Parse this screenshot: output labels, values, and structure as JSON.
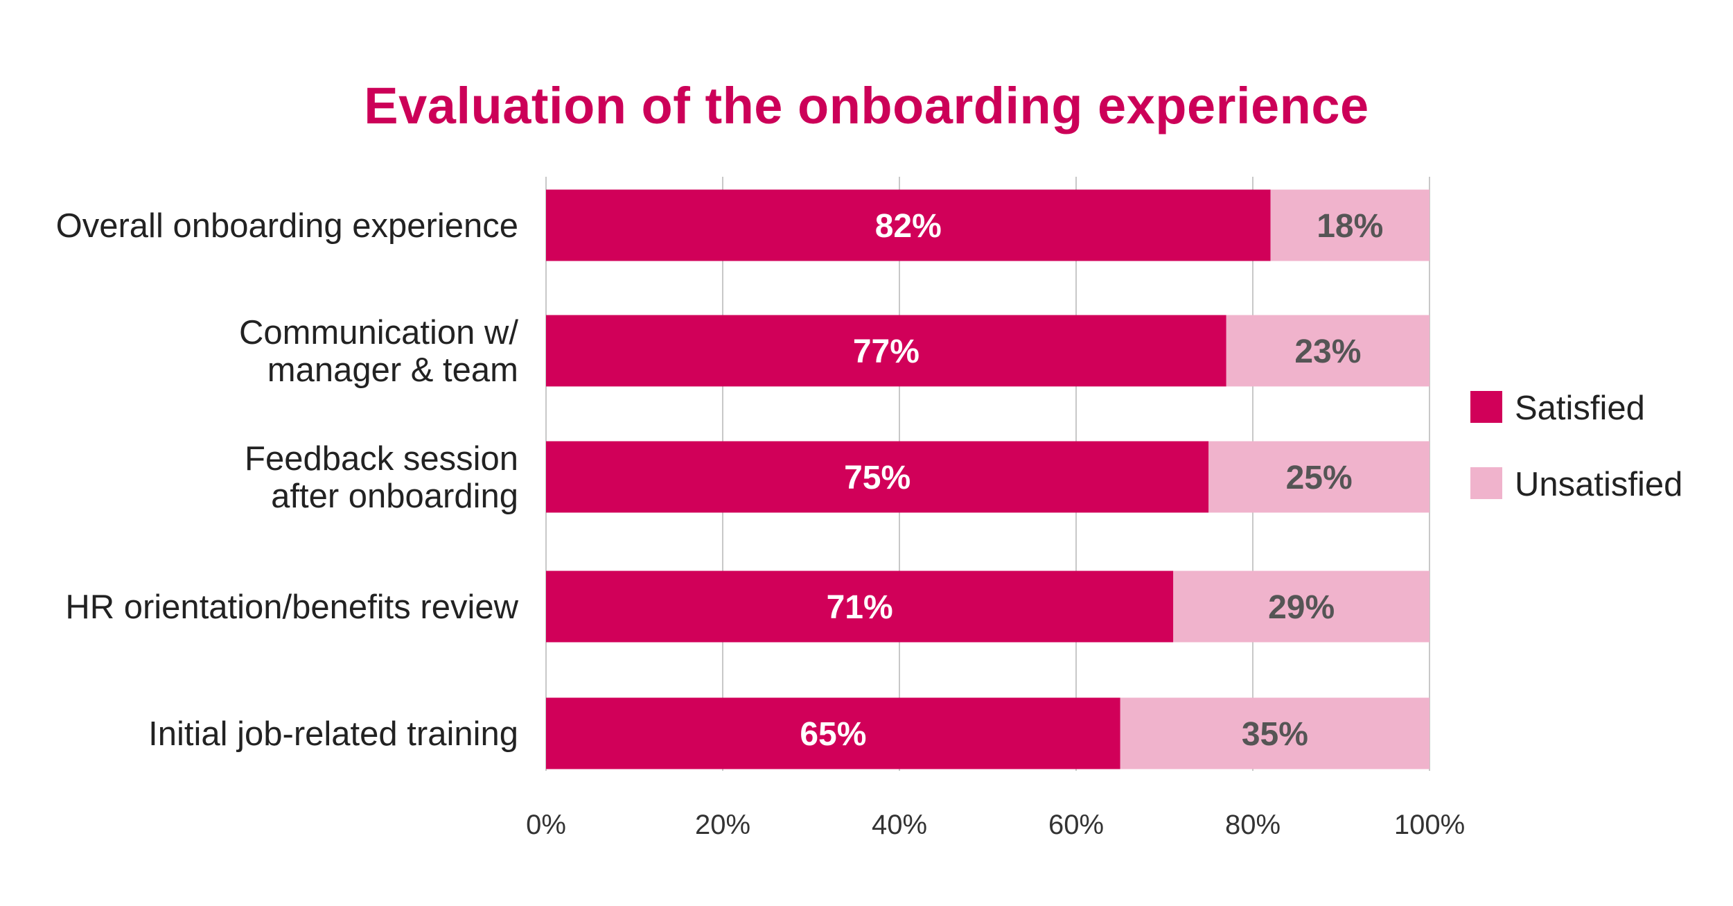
{
  "chart_data": {
    "type": "bar",
    "orientation": "horizontal",
    "stacked": true,
    "title": "Evaluation of the onboarding experience",
    "categories": [
      [
        "Overall onboarding experience"
      ],
      [
        "Communication w/",
        "manager & team"
      ],
      [
        "Feedback session",
        "after onboarding"
      ],
      [
        "HR orientation/benefits review"
      ],
      [
        "Initial job-related training"
      ]
    ],
    "series": [
      {
        "name": "Satisfied",
        "color": "#d10059",
        "label_color": "#ffffff",
        "values": [
          82,
          77,
          75,
          71,
          65
        ],
        "labels": [
          "82%",
          "77%",
          "75%",
          "71%",
          "65%"
        ]
      },
      {
        "name": "Unsatisfied",
        "color": "#f0b3cc",
        "label_color": "#555555",
        "values": [
          18,
          23,
          25,
          29,
          35
        ],
        "labels": [
          "18%",
          "23%",
          "25%",
          "29%",
          "35%"
        ]
      }
    ],
    "xlim": [
      0,
      100
    ],
    "x_ticks": [
      0,
      20,
      40,
      60,
      80,
      100
    ],
    "x_tick_labels": [
      "0%",
      "20%",
      "40%",
      "60%",
      "80%",
      "100%"
    ],
    "grid": true,
    "legend_position": "right"
  }
}
